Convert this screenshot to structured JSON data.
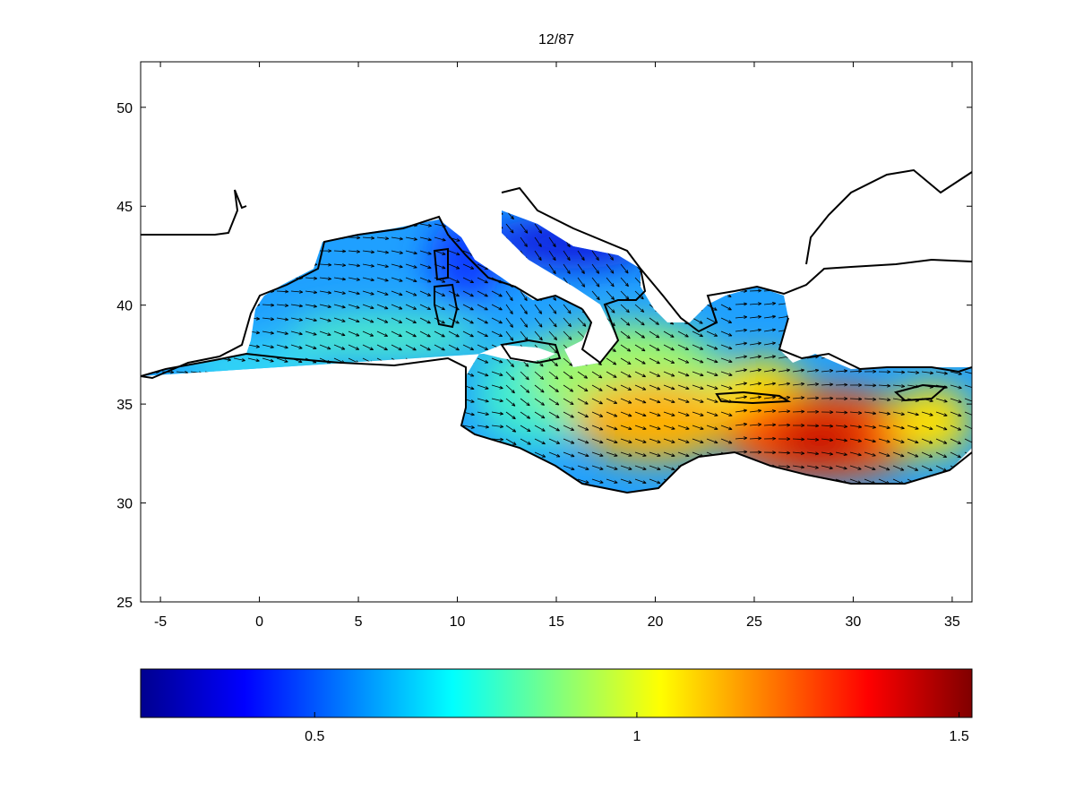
{
  "chart_data": {
    "type": "heatmap",
    "title": "12/87",
    "xlabel": "",
    "ylabel": "",
    "xlim": [
      -6,
      36
    ],
    "ylim": [
      25,
      52.3
    ],
    "x_ticks": [
      -5,
      0,
      5,
      10,
      15,
      20,
      25,
      30,
      35
    ],
    "y_ticks": [
      25,
      30,
      35,
      40,
      45,
      50
    ],
    "colorbar": {
      "orientation": "horizontal",
      "colormap": "jet",
      "range": [
        0.23,
        1.52
      ],
      "ticks": [
        0.5,
        1,
        1.5
      ]
    },
    "field_maxima": [
      {
        "lon": 28,
        "lat": 33,
        "value": 1.5
      },
      {
        "lon": 20,
        "lat": 34.5,
        "value": 1.3
      }
    ],
    "arrow_direction": "mostly eastward / south-eastward",
    "grid": false
  },
  "colors": {
    "land_fill": "#ffffff",
    "coastline": "#000000",
    "arrow": "#000000"
  }
}
